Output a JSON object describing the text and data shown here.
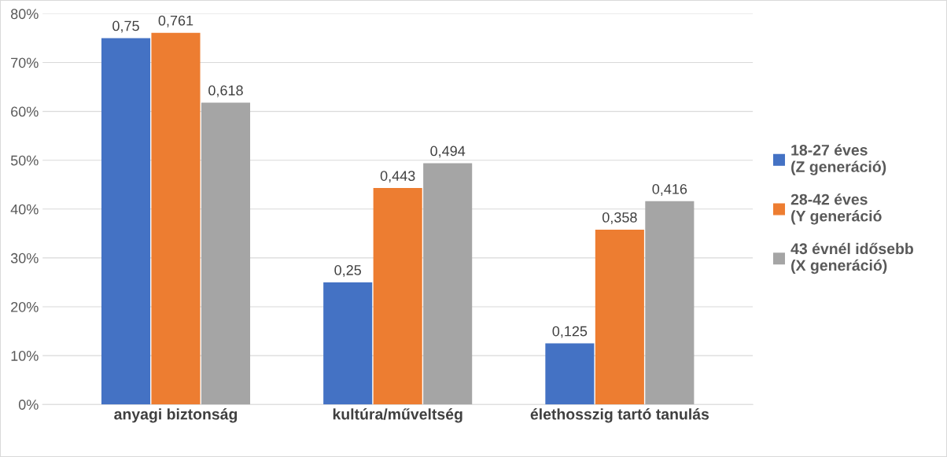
{
  "chart_data": {
    "type": "bar",
    "categories": [
      "anyagi biztonság",
      "kultúra/műveltség",
      "élethosszig tartó tanulás"
    ],
    "series": [
      {
        "name": "18-27 éves (Z generáció)",
        "color": "#4472c4",
        "values": [
          0.75,
          0.25,
          0.125
        ],
        "value_labels": [
          "0,75",
          "0,25",
          "0,125"
        ]
      },
      {
        "name": "28-42 éves (Y generáció",
        "color": "#ed7d31",
        "values": [
          0.761,
          0.443,
          0.358
        ],
        "value_labels": [
          "0,761",
          "0,443",
          "0,358"
        ]
      },
      {
        "name": "43 évnél idősebb (X generáció)",
        "color": "#a5a5a5",
        "values": [
          0.618,
          0.494,
          0.416
        ],
        "value_labels": [
          "0,618",
          "0,494",
          "0,416"
        ]
      }
    ],
    "ylim": [
      0,
      0.8
    ],
    "yticks": [
      {
        "value": 0,
        "label": "0%"
      },
      {
        "value": 0.1,
        "label": "10%"
      },
      {
        "value": 0.2,
        "label": "20%"
      },
      {
        "value": 0.3,
        "label": "30%"
      },
      {
        "value": 0.4,
        "label": "40%"
      },
      {
        "value": 0.5,
        "label": "50%"
      },
      {
        "value": 0.6,
        "label": "60%"
      },
      {
        "value": 0.7,
        "label": "70%"
      },
      {
        "value": 0.8,
        "label": "80%"
      }
    ],
    "grid": "y",
    "legend": "right"
  }
}
